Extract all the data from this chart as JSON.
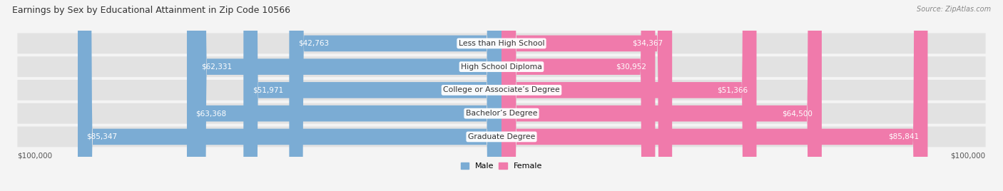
{
  "title": "Earnings by Sex by Educational Attainment in Zip Code 10566",
  "source": "Source: ZipAtlas.com",
  "categories": [
    "Less than High School",
    "High School Diploma",
    "College or Associate’s Degree",
    "Bachelor’s Degree",
    "Graduate Degree"
  ],
  "male_values": [
    42763,
    62331,
    51971,
    63368,
    85347
  ],
  "female_values": [
    34367,
    30952,
    51366,
    64500,
    85841
  ],
  "max_value": 100000,
  "male_color": "#7bacd4",
  "female_color": "#f07aab",
  "row_bg_color": "#e2e2e2",
  "axis_label_left": "$100,000",
  "axis_label_right": "$100,000",
  "fig_bg": "#f4f4f4"
}
